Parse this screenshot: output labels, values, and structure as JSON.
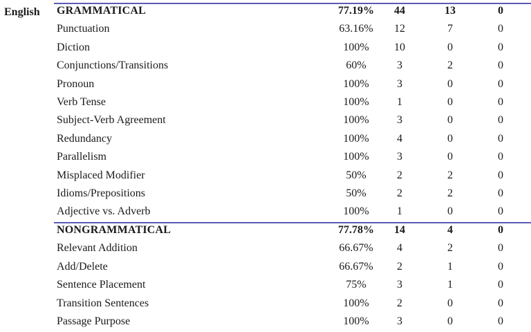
{
  "subject": "English",
  "sections": [
    {
      "header": {
        "name": "GRAMMATICAL",
        "pct": "77.19%",
        "c1": "44",
        "c2": "13",
        "c3": "0"
      },
      "rows": [
        {
          "name": "Punctuation",
          "pct": "63.16%",
          "c1": "12",
          "c2": "7",
          "c3": "0"
        },
        {
          "name": "Diction",
          "pct": "100%",
          "c1": "10",
          "c2": "0",
          "c3": "0"
        },
        {
          "name": "Conjunctions/Transitions",
          "pct": "60%",
          "c1": "3",
          "c2": "2",
          "c3": "0"
        },
        {
          "name": "Pronoun",
          "pct": "100%",
          "c1": "3",
          "c2": "0",
          "c3": "0"
        },
        {
          "name": "Verb Tense",
          "pct": "100%",
          "c1": "1",
          "c2": "0",
          "c3": "0"
        },
        {
          "name": "Subject-Verb Agreement",
          "pct": "100%",
          "c1": "3",
          "c2": "0",
          "c3": "0"
        },
        {
          "name": "Redundancy",
          "pct": "100%",
          "c1": "4",
          "c2": "0",
          "c3": "0"
        },
        {
          "name": "Parallelism",
          "pct": "100%",
          "c1": "3",
          "c2": "0",
          "c3": "0"
        },
        {
          "name": "Misplaced Modifier",
          "pct": "50%",
          "c1": "2",
          "c2": "2",
          "c3": "0"
        },
        {
          "name": "Idioms/Prepositions",
          "pct": "50%",
          "c1": "2",
          "c2": "2",
          "c3": "0"
        },
        {
          "name": "Adjective vs. Adverb",
          "pct": "100%",
          "c1": "1",
          "c2": "0",
          "c3": "0"
        }
      ]
    },
    {
      "header": {
        "name": "NONGRAMMATICAL",
        "pct": "77.78%",
        "c1": "14",
        "c2": "4",
        "c3": "0"
      },
      "rows": [
        {
          "name": "Relevant Addition",
          "pct": "66.67%",
          "c1": "4",
          "c2": "2",
          "c3": "0"
        },
        {
          "name": "Add/Delete",
          "pct": "66.67%",
          "c1": "2",
          "c2": "1",
          "c3": "0"
        },
        {
          "name": "Sentence Placement",
          "pct": "75%",
          "c1": "3",
          "c2": "1",
          "c3": "0"
        },
        {
          "name": "Transition Sentences",
          "pct": "100%",
          "c1": "2",
          "c2": "0",
          "c3": "0"
        },
        {
          "name": "Passage Purpose",
          "pct": "100%",
          "c1": "3",
          "c2": "0",
          "c3": "0"
        }
      ]
    }
  ],
  "colors": {
    "rule": "#5b5bb5",
    "text": "#1a1a1a"
  }
}
